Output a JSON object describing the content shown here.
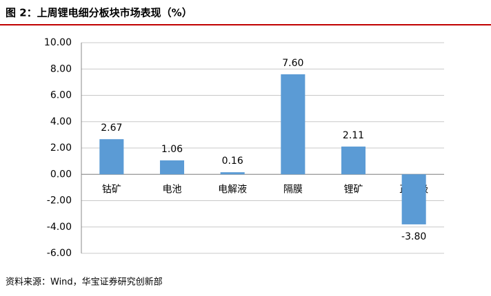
{
  "chart_data": {
    "type": "bar",
    "title": "图 2：上周锂电细分板块市场表现（%）",
    "source": "资料来源：Wind，华宝证券研究创新部",
    "categories": [
      "钴矿",
      "电池",
      "电解液",
      "隔膜",
      "锂矿",
      "正负极"
    ],
    "values": [
      2.67,
      1.06,
      0.16,
      7.6,
      2.11,
      -3.8
    ],
    "value_labels": [
      "2.67",
      "1.06",
      "0.16",
      "7.60",
      "2.11",
      "-3.80"
    ],
    "color": "#5b9bd5",
    "ylim": [
      -6,
      10
    ],
    "yticks": [
      {
        "value": -6,
        "label": "-6.00"
      },
      {
        "value": -4,
        "label": "-4.00"
      },
      {
        "value": -2,
        "label": "-2.00"
      },
      {
        "value": 0,
        "label": "0.00"
      },
      {
        "value": 2,
        "label": "2.00"
      },
      {
        "value": 4,
        "label": "4.00"
      },
      {
        "value": 6,
        "label": "6.00"
      },
      {
        "value": 8,
        "label": "8.00"
      },
      {
        "value": 10,
        "label": "10.00"
      }
    ],
    "grid": true
  }
}
